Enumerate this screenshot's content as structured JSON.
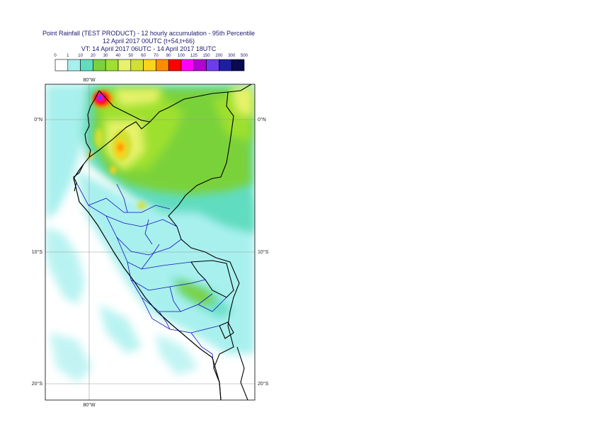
{
  "title": {
    "line1": "Point Rainfall (TEST PRODUCT) - 12 hourly accumulation - 95th Percentile",
    "line2": "12 April 2017 00UTC (t+54,t+66)",
    "line3": "VT: 14 April 2017 06UTC - 14 April 2017 18UTC"
  },
  "legend": {
    "thresholds": [
      "0",
      "1",
      "10",
      "20",
      "30",
      "40",
      "50",
      "60",
      "70",
      "80",
      "100",
      "125",
      "150",
      "200",
      "300",
      "500"
    ],
    "colors": [
      "#ffffff",
      "#a8f0ee",
      "#60dcc0",
      "#7ad23a",
      "#9ee02e",
      "#e6f26a",
      "#d2e032",
      "#ffd21e",
      "#ff8c00",
      "#ff0000",
      "#ff00ff",
      "#b400d2",
      "#6e3cf0",
      "#1e1ea0",
      "#0a0a50"
    ]
  },
  "axes": {
    "lon_top": "80°W",
    "lon_bottom": "80°W",
    "lat_left": [
      "0°N",
      "10°S",
      "20°S"
    ],
    "lat_right": [
      "0°N",
      "10°S",
      "20°S"
    ]
  }
}
